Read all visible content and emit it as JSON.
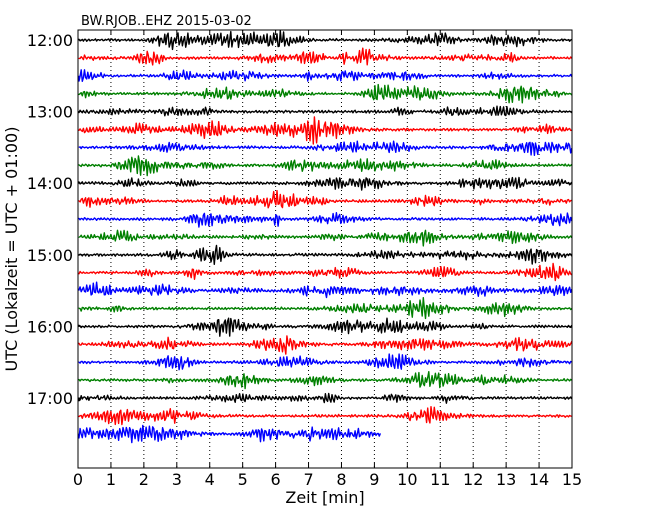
{
  "chart_data": {
    "type": "line",
    "title": "BW.RJOB..EHZ 2015-03-02",
    "xlabel": "Zeit  [min]",
    "ylabel": "UTC (Lokalzeit = UTC + 01:00)",
    "xlim": [
      0,
      15
    ],
    "x_ticks": [
      "0",
      "1",
      "2",
      "3",
      "4",
      "5",
      "6",
      "7",
      "8",
      "9",
      "10",
      "11",
      "12",
      "13",
      "14",
      "15"
    ],
    "y_ticks": [
      "12:00",
      "13:00",
      "14:00",
      "15:00",
      "16:00",
      "17:00"
    ],
    "grid": "vertical dotted",
    "color_cycle": [
      "#000000",
      "#ff0000",
      "#0000ff",
      "#008000"
    ],
    "traces": [
      {
        "start": "12:00",
        "end_min": 15
      },
      {
        "start": "12:15",
        "end_min": 15
      },
      {
        "start": "12:30",
        "end_min": 15
      },
      {
        "start": "12:45",
        "end_min": 15
      },
      {
        "start": "13:00",
        "end_min": 15
      },
      {
        "start": "13:15",
        "end_min": 15
      },
      {
        "start": "13:30",
        "end_min": 15
      },
      {
        "start": "13:45",
        "end_min": 15
      },
      {
        "start": "14:00",
        "end_min": 15
      },
      {
        "start": "14:15",
        "end_min": 15
      },
      {
        "start": "14:30",
        "end_min": 15
      },
      {
        "start": "14:45",
        "end_min": 15
      },
      {
        "start": "15:00",
        "end_min": 15
      },
      {
        "start": "15:15",
        "end_min": 15
      },
      {
        "start": "15:30",
        "end_min": 15
      },
      {
        "start": "15:45",
        "end_min": 15
      },
      {
        "start": "16:00",
        "end_min": 15
      },
      {
        "start": "16:15",
        "end_min": 15
      },
      {
        "start": "16:30",
        "end_min": 15
      },
      {
        "start": "16:45",
        "end_min": 15
      },
      {
        "start": "17:00",
        "end_min": 15
      },
      {
        "start": "17:15",
        "end_min": 15
      },
      {
        "start": "17:30",
        "end_min": 9.2
      }
    ]
  }
}
